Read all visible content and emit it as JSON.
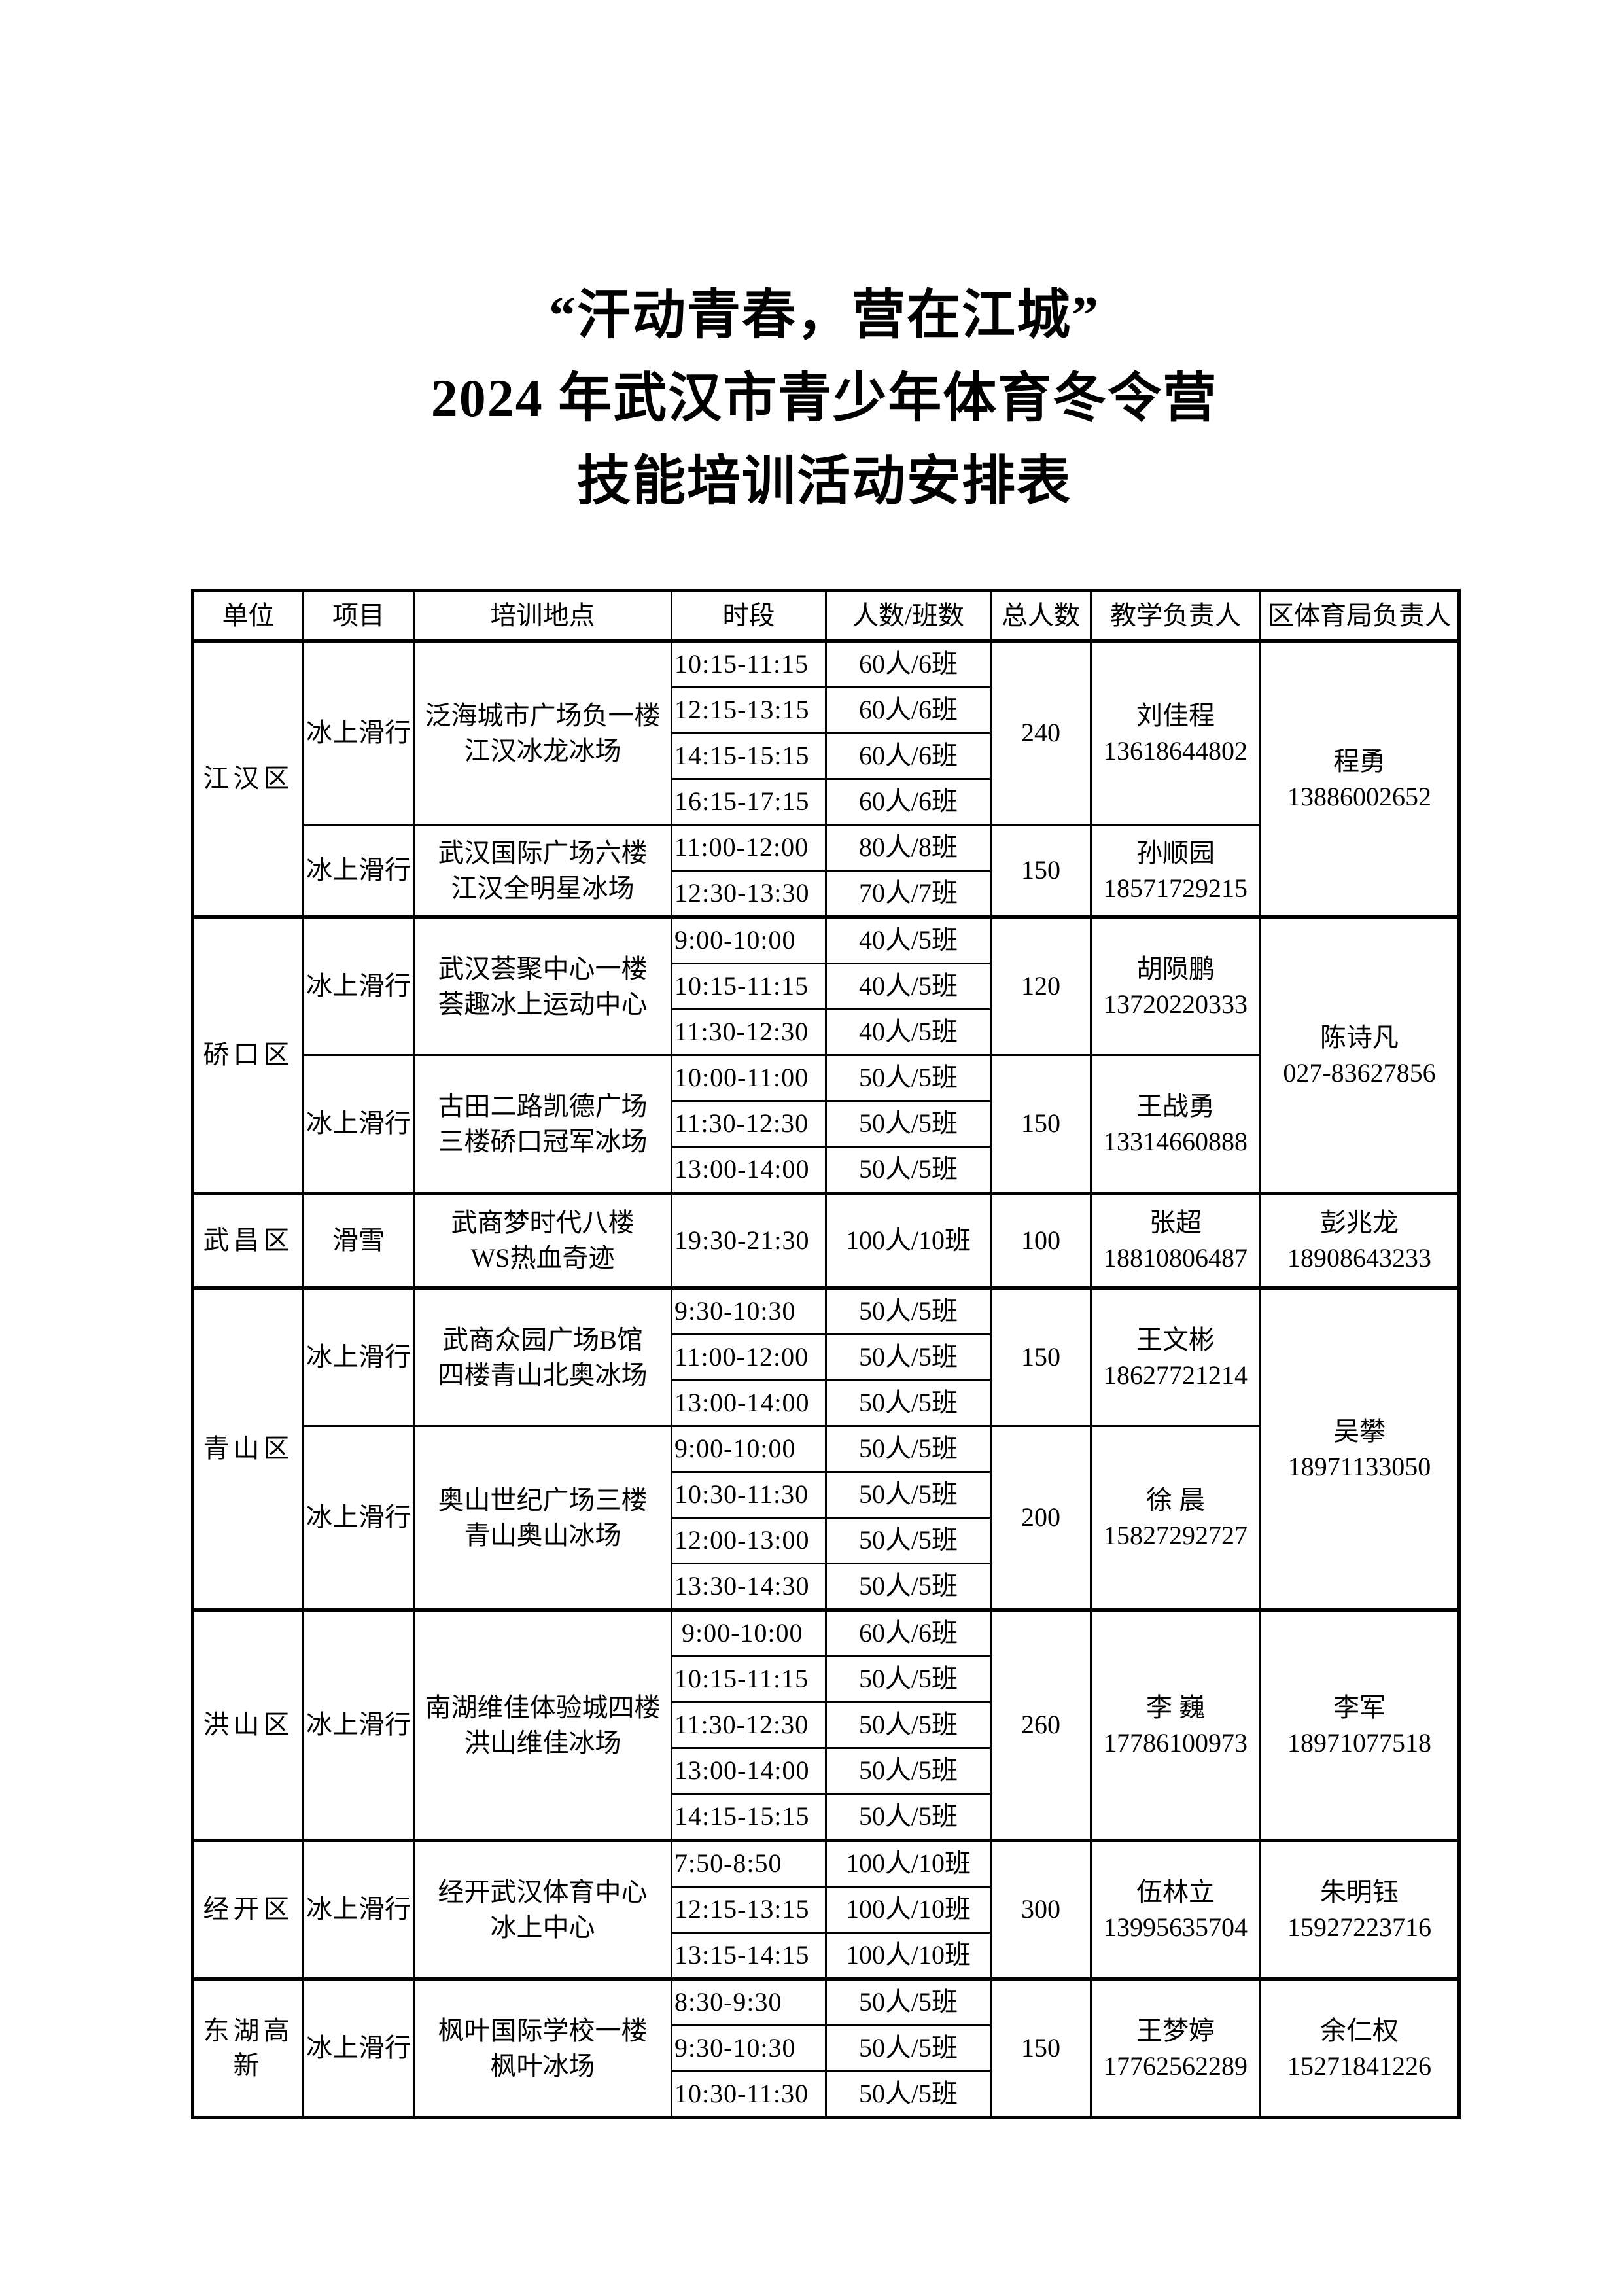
{
  "page": {
    "title_lines": [
      "“汗动青春，营在江城”",
      "2024 年武汉市青少年体育冬令营",
      "技能培训活动安排表"
    ]
  },
  "table": {
    "columns": [
      "单位",
      "项目",
      "培训地点",
      "时段",
      "人数/班数",
      "总人数",
      "教学负责人",
      "区体育局负责人"
    ],
    "sections": [
      {
        "unit": "江汉区",
        "official": {
          "name": "程勇",
          "phone": "13886002652"
        },
        "groups": [
          {
            "project": "冰上滑行",
            "venue": [
              "泛海城市广场负一楼",
              "江汉冰龙冰场"
            ],
            "total": "240",
            "teacher": {
              "name": "刘佳程",
              "phone": "13618644802"
            },
            "slots": [
              {
                "time": "10:15-11:15",
                "quota": "60人/6班"
              },
              {
                "time": "12:15-13:15",
                "quota": "60人/6班"
              },
              {
                "time": "14:15-15:15",
                "quota": "60人/6班"
              },
              {
                "time": "16:15-17:15",
                "quota": "60人/6班"
              }
            ]
          },
          {
            "project": "冰上滑行",
            "venue": [
              "武汉国际广场六楼",
              "江汉全明星冰场"
            ],
            "total": "150",
            "teacher": {
              "name": "孙顺园",
              "phone": "18571729215"
            },
            "slots": [
              {
                "time": "11:00-12:00",
                "quota": "80人/8班"
              },
              {
                "time": "12:30-13:30",
                "quota": "70人/7班"
              }
            ]
          }
        ]
      },
      {
        "unit": "硚口区",
        "official": {
          "name": "陈诗凡",
          "phone": "027-83627856"
        },
        "groups": [
          {
            "project": "冰上滑行",
            "venue": [
              "武汉荟聚中心一楼",
              "荟趣冰上运动中心"
            ],
            "total": "120",
            "teacher": {
              "name": "胡陨鹏",
              "phone": "13720220333"
            },
            "slots": [
              {
                "time": "9:00-10:00",
                "quota": "40人/5班"
              },
              {
                "time": "10:15-11:15",
                "quota": "40人/5班"
              },
              {
                "time": "11:30-12:30",
                "quota": "40人/5班"
              }
            ]
          },
          {
            "project": "冰上滑行",
            "venue": [
              "古田二路凯德广场",
              "三楼硚口冠军冰场"
            ],
            "total": "150",
            "teacher": {
              "name": "王战勇",
              "phone": "13314660888"
            },
            "slots": [
              {
                "time": "10:00-11:00",
                "quota": "50人/5班"
              },
              {
                "time": "11:30-12:30",
                "quota": "50人/5班"
              },
              {
                "time": "13:00-14:00",
                "quota": "50人/5班"
              }
            ]
          }
        ]
      },
      {
        "unit": "武昌区",
        "official": {
          "name": "彭兆龙",
          "phone": "18908643233"
        },
        "groups": [
          {
            "project": "滑雪",
            "venue": [
              "武商梦时代八楼",
              "WS热血奇迹"
            ],
            "total": "100",
            "teacher": {
              "name": "张超",
              "phone": "18810806487"
            },
            "slots": [
              {
                "time": "19:30-21:30",
                "quota": "100人/10班"
              }
            ]
          }
        ]
      },
      {
        "unit": "青山区",
        "official": {
          "name": "吴攀",
          "phone": "18971133050"
        },
        "groups": [
          {
            "project": "冰上滑行",
            "venue": [
              "武商众园广场B馆",
              "四楼青山北奥冰场"
            ],
            "total": "150",
            "teacher": {
              "name": "王文彬",
              "phone": "18627721214"
            },
            "slots": [
              {
                "time": "9:30-10:30",
                "quota": "50人/5班"
              },
              {
                "time": "11:00-12:00",
                "quota": "50人/5班"
              },
              {
                "time": "13:00-14:00",
                "quota": "50人/5班"
              }
            ]
          },
          {
            "project": "冰上滑行",
            "venue": [
              "奥山世纪广场三楼",
              "青山奥山冰场"
            ],
            "total": "200",
            "teacher": {
              "name": "徐 晨",
              "phone": "15827292727"
            },
            "slots": [
              {
                "time": "9:00-10:00",
                "quota": "50人/5班"
              },
              {
                "time": "10:30-11:30",
                "quota": "50人/5班"
              },
              {
                "time": "12:00-13:00",
                "quota": "50人/5班"
              },
              {
                "time": "13:30-14:30",
                "quota": "50人/5班"
              }
            ]
          }
        ]
      },
      {
        "unit": "洪山区",
        "official": {
          "name": "李军",
          "phone": "18971077518"
        },
        "groups": [
          {
            "project": "冰上滑行",
            "venue": [
              "南湖维佳体验城四楼",
              "洪山维佳冰场"
            ],
            "total": "260",
            "teacher": {
              "name": "李 巍",
              "phone": "17786100973"
            },
            "slots": [
              {
                "time": " 9:00-10:00",
                "quota": "60人/6班"
              },
              {
                "time": "10:15-11:15",
                "quota": "50人/5班"
              },
              {
                "time": "11:30-12:30",
                "quota": "50人/5班"
              },
              {
                "time": "13:00-14:00",
                "quota": "50人/5班"
              },
              {
                "time": "14:15-15:15",
                "quota": "50人/5班"
              }
            ]
          }
        ]
      },
      {
        "unit": "经开区",
        "official": {
          "name": "朱明钰",
          "phone": "15927223716"
        },
        "groups": [
          {
            "project": "冰上滑行",
            "venue": [
              "经开武汉体育中心",
              "冰上中心"
            ],
            "total": "300",
            "teacher": {
              "name": "伍林立",
              "phone": "13995635704"
            },
            "slots": [
              {
                "time": "7:50-8:50",
                "quota": "100人/10班"
              },
              {
                "time": "12:15-13:15",
                "quota": "100人/10班"
              },
              {
                "time": "13:15-14:15",
                "quota": "100人/10班"
              }
            ]
          }
        ]
      },
      {
        "unit": "东湖高新",
        "official": {
          "name": "余仁权",
          "phone": "15271841226"
        },
        "groups": [
          {
            "project": "冰上滑行",
            "venue": [
              "枫叶国际学校一楼",
              "枫叶冰场"
            ],
            "total": "150",
            "teacher": {
              "name": "王梦婷",
              "phone": "17762562289"
            },
            "slots": [
              {
                "time": "8:30-9:30",
                "quota": "50人/5班"
              },
              {
                "time": "9:30-10:30",
                "quota": "50人/5班"
              },
              {
                "time": "10:30-11:30",
                "quota": "50人/5班"
              }
            ]
          }
        ]
      }
    ]
  }
}
